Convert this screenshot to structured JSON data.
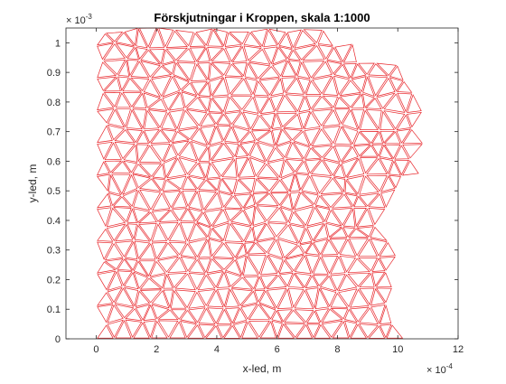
{
  "chart_data": {
    "type": "mesh",
    "title": "Förskjutningar i Kroppen, skala 1:1000",
    "xlabel": "x-led, m",
    "ylabel": "y-led, m",
    "x_exponent": {
      "base": "× 10",
      "power": "-4"
    },
    "y_exponent": {
      "base": "× 10",
      "power": "-3"
    },
    "xlim": [
      -1,
      12
    ],
    "ylim": [
      0,
      1.05
    ],
    "x_ticks": [
      0,
      2,
      4,
      6,
      8,
      10,
      12
    ],
    "y_ticks": [
      0,
      0.1,
      0.2,
      0.3,
      0.4,
      0.5,
      0.6,
      0.7,
      0.8,
      0.9,
      1
    ],
    "x_tick_labels": [
      "0",
      "2",
      "4",
      "6",
      "8",
      "10",
      "12"
    ],
    "y_tick_labels": [
      "0",
      "0.1",
      "0.2",
      "0.3",
      "0.4",
      "0.5",
      "0.6",
      "0.7",
      "0.8",
      "0.9",
      "1"
    ],
    "grid": false,
    "mesh_color": "#e8262b",
    "axis_color": "#262626",
    "body_outline": [
      [
        0,
        0
      ],
      [
        10,
        0
      ],
      [
        10,
        0.35
      ],
      [
        9.6,
        0.38
      ],
      [
        10.2,
        0.45
      ],
      [
        10.8,
        0.55
      ],
      [
        11.0,
        0.65
      ],
      [
        10.9,
        0.75
      ],
      [
        10.5,
        0.87
      ],
      [
        9.6,
        0.97
      ],
      [
        8.0,
        1.035
      ],
      [
        0,
        1.035
      ]
    ],
    "mesh_spacing": [
      0.6,
      0.055
    ]
  }
}
